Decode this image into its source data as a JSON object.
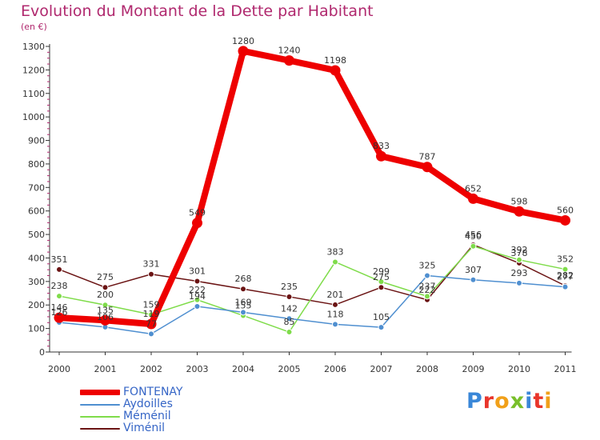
{
  "chart_data": {
    "type": "line",
    "title": "Evolution du Montant de la Dette par Habitant",
    "subtitle": "(en €)",
    "xlabel": "",
    "ylabel": "",
    "ylim": [
      0,
      1300
    ],
    "yticks": [
      0,
      100,
      200,
      300,
      400,
      500,
      600,
      700,
      800,
      900,
      1000,
      1100,
      1200,
      1300
    ],
    "categories": [
      "2000",
      "2001",
      "2002",
      "2003",
      "2004",
      "2005",
      "2006",
      "2007",
      "2008",
      "2009",
      "2010",
      "2011"
    ],
    "grid": false,
    "legend_position": "bottom-left",
    "series": [
      {
        "name": "FONTENAY",
        "color": "#ee0000",
        "values": [
          146,
          135,
          119,
          549,
          1280,
          1240,
          1198,
          833,
          787,
          652,
          598,
          560
        ]
      },
      {
        "name": "Aydoilles",
        "color": "#4f8fd0",
        "values": [
          126,
          106,
          77,
          194,
          169,
          142,
          118,
          105,
          325,
          307,
          293,
          277
        ]
      },
      {
        "name": "Méménil",
        "color": "#7fdc4a",
        "values": [
          238,
          200,
          159,
          222,
          155,
          85,
          383,
          299,
          237,
          450,
          392,
          352
        ]
      },
      {
        "name": "Viménil",
        "color": "#6b1414",
        "values": [
          351,
          275,
          331,
          301,
          268,
          235,
          201,
          275,
          222,
          456,
          378,
          282
        ]
      }
    ]
  },
  "logo": {
    "letters": [
      {
        "char": "P",
        "color": "#3a87d8"
      },
      {
        "char": "r",
        "color": "#e9352b"
      },
      {
        "char": "o",
        "color": "#f1a019"
      },
      {
        "char": "x",
        "color": "#79bf2a"
      },
      {
        "char": "i",
        "color": "#3a87d8"
      },
      {
        "char": "t",
        "color": "#e9352b"
      },
      {
        "char": "i",
        "color": "#f1a019"
      }
    ]
  }
}
